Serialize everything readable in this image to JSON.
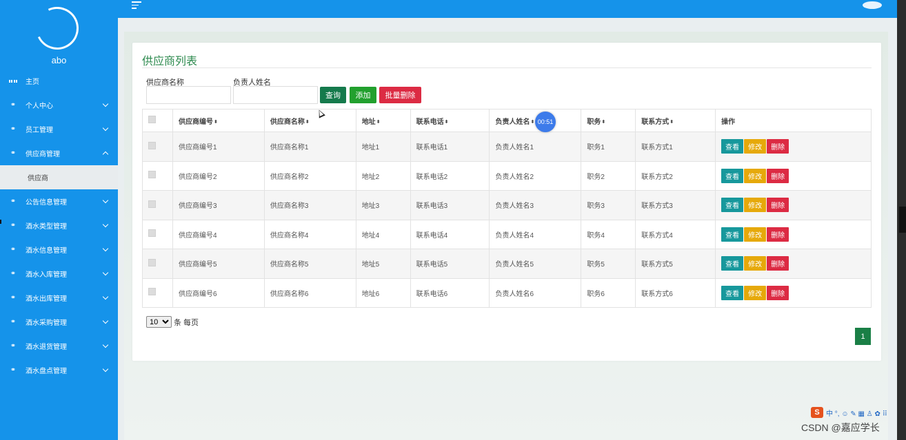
{
  "sidebar": {
    "username": "abo",
    "menu": [
      {
        "label": "主页",
        "icon": "grid-icon"
      },
      {
        "label": "个人中心",
        "icon": "link-icon"
      },
      {
        "label": "员工管理",
        "icon": "link-icon"
      },
      {
        "label": "供应商管理",
        "icon": "link-icon",
        "expanded": true
      },
      {
        "label": "公告信息管理",
        "icon": "link-icon"
      },
      {
        "label": "酒水类型管理",
        "icon": "link-icon"
      },
      {
        "label": "酒水信息管理",
        "icon": "link-icon"
      },
      {
        "label": "酒水入库管理",
        "icon": "link-icon"
      },
      {
        "label": "酒水出库管理",
        "icon": "link-icon"
      },
      {
        "label": "酒水采购管理",
        "icon": "link-icon"
      },
      {
        "label": "酒水退货管理",
        "icon": "link-icon"
      },
      {
        "label": "酒水盘点管理",
        "icon": "link-icon"
      }
    ],
    "submenu": {
      "label": "供应商"
    }
  },
  "card": {
    "title": "供应商列表"
  },
  "search": {
    "supplier_name_label": "供应商名称",
    "supplier_name_value": "",
    "contact_name_label": "负责人姓名",
    "contact_name_value": "",
    "query_button": "查询",
    "add_button": "添加",
    "batch_delete_button": "批量删除"
  },
  "table": {
    "headers": [
      "供应商编号",
      "供应商名称",
      "地址",
      "联系电话",
      "负责人姓名",
      "职务",
      "联系方式",
      "操作"
    ],
    "sort_glyph": "⬍",
    "actions": {
      "view": "查看",
      "edit": "修改",
      "delete": "删除"
    },
    "rows": [
      [
        "供应商编号1",
        "供应商名称1",
        "地址1",
        "联系电话1",
        "负责人姓名1",
        "职务1",
        "联系方式1"
      ],
      [
        "供应商编号2",
        "供应商名称2",
        "地址2",
        "联系电话2",
        "负责人姓名2",
        "职务2",
        "联系方式2"
      ],
      [
        "供应商编号3",
        "供应商名称3",
        "地址3",
        "联系电话3",
        "负责人姓名3",
        "职务3",
        "联系方式3"
      ],
      [
        "供应商编号4",
        "供应商名称4",
        "地址4",
        "联系电话4",
        "负责人姓名4",
        "职务4",
        "联系方式4"
      ],
      [
        "供应商编号5",
        "供应商名称5",
        "地址5",
        "联系电话5",
        "负责人姓名5",
        "职务5",
        "联系方式5"
      ],
      [
        "供应商编号6",
        "供应商名称6",
        "地址6",
        "联系电话6",
        "负责人姓名6",
        "职务6",
        "联系方式6"
      ]
    ]
  },
  "pagination": {
    "page_size": "10",
    "page_size_label": "条 每页",
    "current_page": "1"
  },
  "overlay": {
    "timer": "00:51",
    "watermark": "CSDN @嘉应学长",
    "ime_logo": "S",
    "ime_text": "中 °, ☺ ✎ ▦ ♙ ✿ ⠿"
  }
}
